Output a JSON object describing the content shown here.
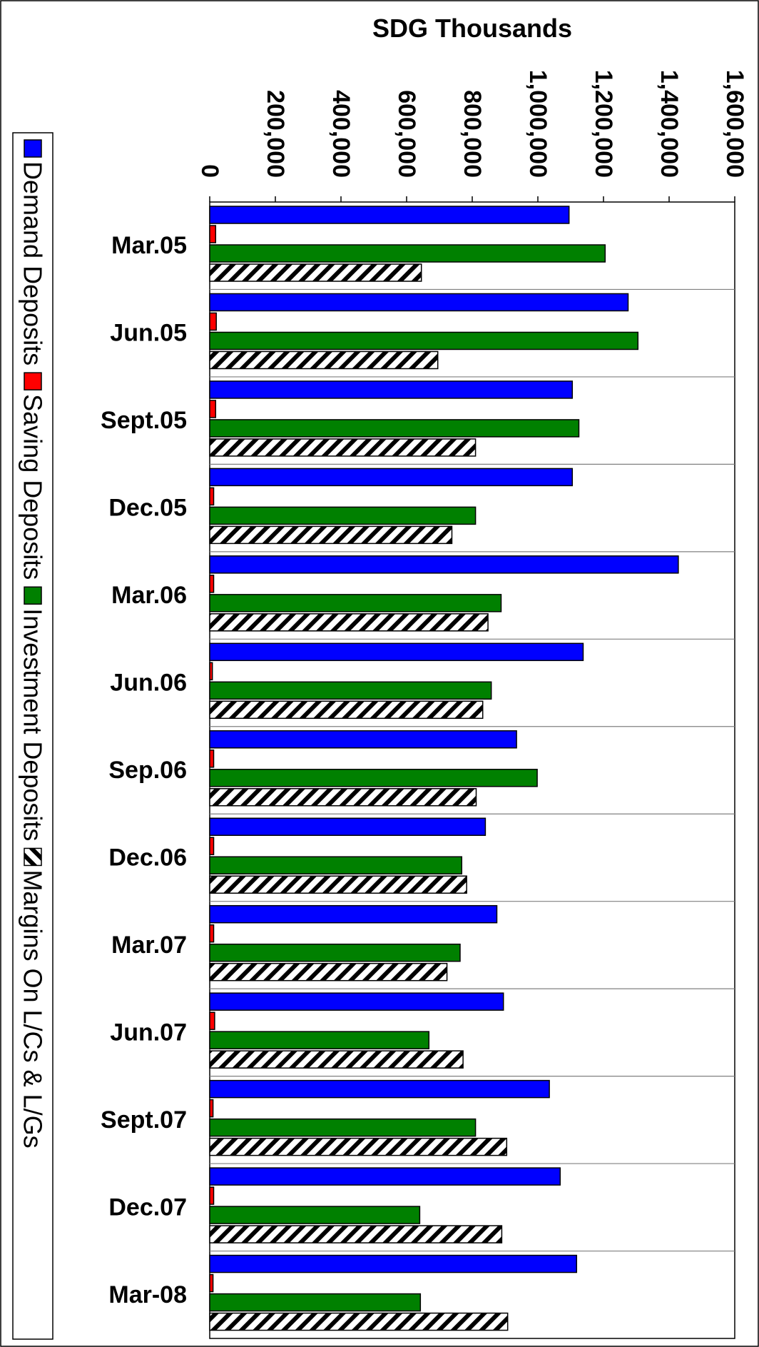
{
  "chart_data": {
    "type": "bar",
    "orientation": "horizontal",
    "title": "",
    "xlabel": "SDG Thousands",
    "ylabel": "",
    "xlim": [
      0,
      1600000
    ],
    "x_ticks": [
      0,
      200000,
      400000,
      600000,
      800000,
      1000000,
      1200000,
      1400000,
      1600000
    ],
    "x_tick_labels": [
      "0",
      "200,000",
      "400,000",
      "600,000",
      "800,000",
      "1,000,000",
      "1,200,000",
      "1,400,000",
      "1,600,000"
    ],
    "grid": false,
    "legend_position": "left",
    "categories": [
      "Mar.05",
      "Jun.05",
      "Sept.05",
      "Dec.05",
      "Mar.06",
      "Jun.06",
      "Sep.06",
      "Dec.06",
      "Mar.07",
      "Jun.07",
      "Sept.07",
      "Dec.07",
      "Mar-08"
    ],
    "series": [
      {
        "name": "Demand Deposits",
        "color": "#0000ff",
        "pattern": "solid",
        "values": [
          1095000,
          1275000,
          1105000,
          1105000,
          1428000,
          1138000,
          935000,
          840000,
          875000,
          895000,
          1035000,
          1068000,
          1118000
        ]
      },
      {
        "name": "Saving Deposits",
        "color": "#ff0000",
        "pattern": "solid",
        "values": [
          18000,
          20000,
          18000,
          12000,
          12000,
          8000,
          12000,
          12000,
          12000,
          15000,
          10000,
          12000,
          10000
        ]
      },
      {
        "name": "Investment Deposits",
        "color": "#008000",
        "pattern": "solid",
        "values": [
          1205000,
          1305000,
          1125000,
          810000,
          888000,
          858000,
          998000,
          768000,
          763000,
          668000,
          810000,
          640000,
          642000
        ]
      },
      {
        "name": "Margins On L/Cs & L/Gs",
        "color": "#000000",
        "pattern": "hatch",
        "values": [
          645000,
          695000,
          810000,
          738000,
          848000,
          832000,
          812000,
          783000,
          723000,
          772000,
          905000,
          890000,
          908000
        ]
      }
    ]
  }
}
